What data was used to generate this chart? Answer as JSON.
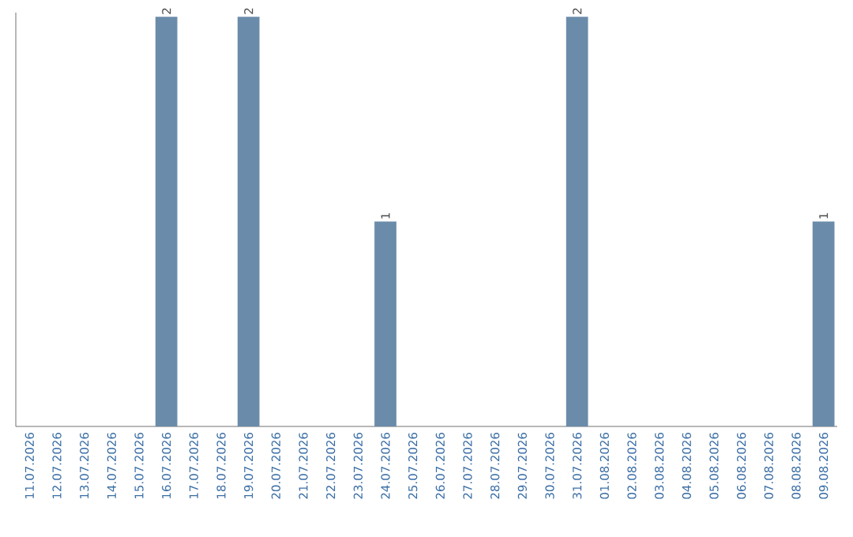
{
  "chart_data": {
    "type": "bar",
    "categories": [
      "11.07.2026",
      "12.07.2026",
      "13.07.2026",
      "14.07.2026",
      "15.07.2026",
      "16.07.2026",
      "17.07.2026",
      "18.07.2026",
      "19.07.2026",
      "20.07.2026",
      "21.07.2026",
      "22.07.2026",
      "23.07.2026",
      "24.07.2026",
      "25.07.2026",
      "26.07.2026",
      "27.07.2026",
      "28.07.2026",
      "29.07.2026",
      "30.07.2026",
      "31.07.2026",
      "01.08.2026",
      "02.08.2026",
      "03.08.2026",
      "04.08.2026",
      "05.08.2026",
      "06.08.2026",
      "07.08.2026",
      "08.08.2026",
      "09.08.2026"
    ],
    "values": [
      0,
      0,
      0,
      0,
      0,
      2,
      0,
      0,
      2,
      0,
      0,
      0,
      0,
      1,
      0,
      0,
      0,
      0,
      0,
      0,
      2,
      0,
      0,
      0,
      0,
      0,
      0,
      0,
      0,
      1
    ],
    "value_labels": [
      null,
      null,
      null,
      null,
      null,
      "2",
      null,
      null,
      "2",
      null,
      null,
      null,
      null,
      "1",
      null,
      null,
      null,
      null,
      null,
      null,
      "2",
      null,
      null,
      null,
      null,
      null,
      null,
      null,
      null,
      "1"
    ],
    "color": "#6a8caa",
    "tick_labels": "x",
    "grid": false
  }
}
